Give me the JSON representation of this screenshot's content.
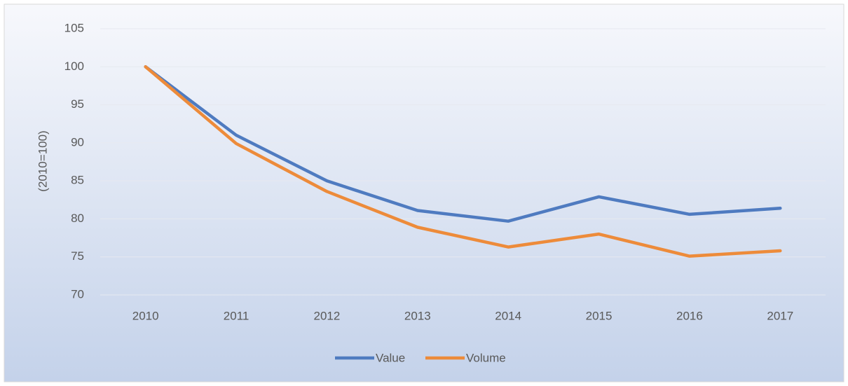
{
  "chart_data": {
    "type": "line",
    "y_label": "(2010=100)",
    "categories": [
      "2010",
      "2011",
      "2012",
      "2013",
      "2014",
      "2015",
      "2016",
      "2017"
    ],
    "series": [
      {
        "name": "Value",
        "color": "#4f7bc0",
        "values": [
          100,
          91,
          85,
          81.1,
          79.7,
          82.9,
          80.6,
          81.4
        ]
      },
      {
        "name": "Volume",
        "color": "#ed8b3a",
        "values": [
          100,
          89.9,
          83.6,
          78.9,
          76.3,
          78,
          75.1,
          75.8
        ]
      }
    ],
    "ylim": [
      70,
      105
    ],
    "yticks": [
      70,
      75,
      80,
      85,
      90,
      95,
      100,
      105
    ],
    "grid": true,
    "legend": "bottom"
  }
}
